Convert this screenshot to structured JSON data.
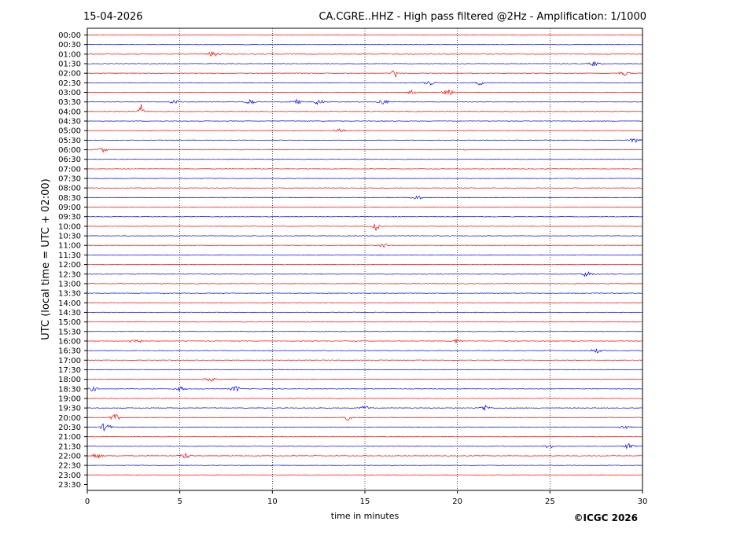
{
  "header": {
    "date": "15-04-2026",
    "title": "CA.CGRE..HHZ - High pass filtered @2Hz - Amplification: 1/1000"
  },
  "footer": {
    "copyright": "©ICGC 2026"
  },
  "colors": {
    "trace_a": "#ff0000",
    "trace_b": "#0000ff",
    "grid": "#000000",
    "axes": "#000000"
  },
  "chart_data": {
    "type": "line",
    "xlabel": "time in minutes",
    "ylabel": "UTC (local time = UTC + 02:00)",
    "xlim": [
      0,
      30
    ],
    "xticks": [
      0,
      5,
      10,
      15,
      20,
      25,
      30
    ],
    "xgrid": [
      5,
      10,
      15,
      20,
      25
    ],
    "grid": "vertical dotted",
    "row_labels": [
      "00:00",
      "00:30",
      "01:00",
      "01:30",
      "02:00",
      "02:30",
      "03:00",
      "03:30",
      "04:00",
      "04:30",
      "05:00",
      "05:30",
      "06:00",
      "06:30",
      "07:00",
      "07:30",
      "08:00",
      "08:30",
      "09:00",
      "09:30",
      "10:00",
      "10:30",
      "11:00",
      "11:30",
      "12:00",
      "12:30",
      "13:00",
      "13:30",
      "14:00",
      "14:30",
      "15:00",
      "15:30",
      "16:00",
      "16:30",
      "17:00",
      "17:30",
      "18:00",
      "18:30",
      "19:00",
      "19:30",
      "20:00",
      "20:30",
      "21:00",
      "21:30",
      "22:00",
      "22:30",
      "23:00",
      "23:30"
    ],
    "data_rows": 47,
    "row_colors": [
      "trace_a",
      "trace_b"
    ],
    "events": [
      {
        "row": "01:00",
        "minute": 6.8,
        "amplitude": 0.4
      },
      {
        "row": "01:30",
        "minute": 27.4,
        "amplitude": 0.3
      },
      {
        "row": "02:00",
        "minute": 16.6,
        "amplitude": 1.0
      },
      {
        "row": "02:00",
        "minute": 29.0,
        "amplitude": 0.3
      },
      {
        "row": "02:30",
        "minute": 18.5,
        "amplitude": 0.3
      },
      {
        "row": "02:30",
        "minute": 21.2,
        "amplitude": 0.3
      },
      {
        "row": "03:00",
        "minute": 17.5,
        "amplitude": 0.3
      },
      {
        "row": "03:00",
        "minute": 19.5,
        "amplitude": 0.4
      },
      {
        "row": "03:30",
        "minute": 4.7,
        "amplitude": 0.3
      },
      {
        "row": "03:30",
        "minute": 8.8,
        "amplitude": 0.4
      },
      {
        "row": "03:30",
        "minute": 11.3,
        "amplitude": 0.3
      },
      {
        "row": "03:30",
        "minute": 12.5,
        "amplitude": 0.4
      },
      {
        "row": "03:30",
        "minute": 16.0,
        "amplitude": 0.3
      },
      {
        "row": "04:00",
        "minute": 2.9,
        "amplitude": 1.0
      },
      {
        "row": "05:00",
        "minute": 13.6,
        "amplitude": 0.3
      },
      {
        "row": "05:30",
        "minute": 29.6,
        "amplitude": 0.3
      },
      {
        "row": "06:00",
        "minute": 0.8,
        "amplitude": 0.3
      },
      {
        "row": "08:30",
        "minute": 17.8,
        "amplitude": 0.3
      },
      {
        "row": "10:00",
        "minute": 15.6,
        "amplitude": 1.0
      },
      {
        "row": "11:00",
        "minute": 16.0,
        "amplitude": 0.3
      },
      {
        "row": "12:30",
        "minute": 27.0,
        "amplitude": 0.4
      },
      {
        "row": "16:00",
        "minute": 2.6,
        "amplitude": 0.6
      },
      {
        "row": "16:00",
        "minute": 20.0,
        "amplitude": 0.3
      },
      {
        "row": "16:30",
        "minute": 27.5,
        "amplitude": 0.3
      },
      {
        "row": "18:00",
        "minute": 6.6,
        "amplitude": 0.4
      },
      {
        "row": "18:30",
        "minute": 0.3,
        "amplitude": 0.3
      },
      {
        "row": "18:30",
        "minute": 5.0,
        "amplitude": 0.3
      },
      {
        "row": "18:30",
        "minute": 8.0,
        "amplitude": 0.4
      },
      {
        "row": "19:30",
        "minute": 15.0,
        "amplitude": 0.3
      },
      {
        "row": "19:30",
        "minute": 21.5,
        "amplitude": 0.4
      },
      {
        "row": "20:00",
        "minute": 1.5,
        "amplitude": 0.4
      },
      {
        "row": "20:00",
        "minute": 14.0,
        "amplitude": 0.4
      },
      {
        "row": "20:30",
        "minute": 1.0,
        "amplitude": 0.6
      },
      {
        "row": "20:30",
        "minute": 29.0,
        "amplitude": 0.3
      },
      {
        "row": "21:30",
        "minute": 25.0,
        "amplitude": 0.3
      },
      {
        "row": "21:30",
        "minute": 29.3,
        "amplitude": 0.4
      },
      {
        "row": "22:00",
        "minute": 0.5,
        "amplitude": 0.4
      },
      {
        "row": "22:00",
        "minute": 5.3,
        "amplitude": 0.4
      }
    ]
  }
}
